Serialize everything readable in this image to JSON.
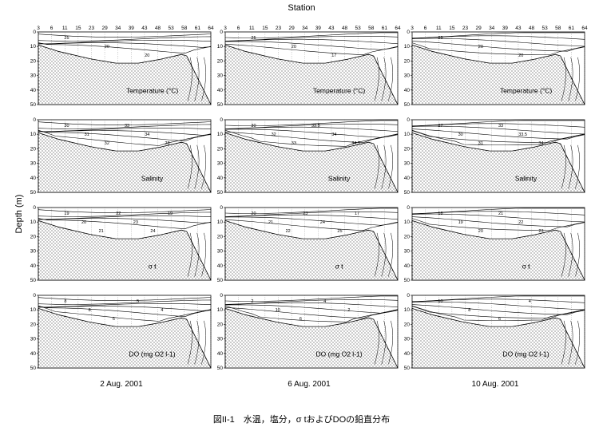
{
  "figure": {
    "x_axis_title": "Station",
    "y_axis_title": "Depth (m)",
    "caption": "図II-1　水温，塩分，σ tおよびDOの鉛直分布",
    "stations": [
      "3",
      "6",
      "11",
      "15",
      "23",
      "29",
      "34",
      "39",
      "43",
      "48",
      "53",
      "58",
      "61",
      "64"
    ],
    "depth_ticks": [
      "0",
      "10",
      "20",
      "30",
      "40",
      "50"
    ],
    "dates": [
      "2 Aug. 2001",
      "6 Aug. 2001",
      "10 Aug. 2001"
    ],
    "rows": [
      {
        "key": "temperature",
        "title": "Temperature (°C)",
        "labels": [
          "25",
          "20",
          "20",
          "25",
          "20",
          "17",
          "25",
          "20",
          "20"
        ]
      },
      {
        "key": "salinity",
        "title": "Salinity",
        "labels": [
          "30",
          "31",
          "32",
          "33",
          "34",
          "28",
          "30",
          "32",
          "33",
          "33.5",
          "34",
          "34.5",
          "27",
          "30",
          "31",
          "33",
          "33.5",
          "34"
        ]
      },
      {
        "key": "sigma_t",
        "title": "σ t",
        "labels": [
          "19",
          "20",
          "21",
          "22",
          "23",
          "24",
          "19",
          "20",
          "21",
          "22",
          "23",
          "24",
          "25",
          "17",
          "18",
          "19",
          "20",
          "21",
          "22",
          "23"
        ]
      },
      {
        "key": "do",
        "title": "DO (mg O2 l-1)",
        "labels": [
          "8",
          "8",
          "6",
          "5",
          "4",
          "2",
          "10",
          "6",
          "4",
          "2",
          "10",
          "8",
          "6",
          "4"
        ]
      }
    ]
  }
}
